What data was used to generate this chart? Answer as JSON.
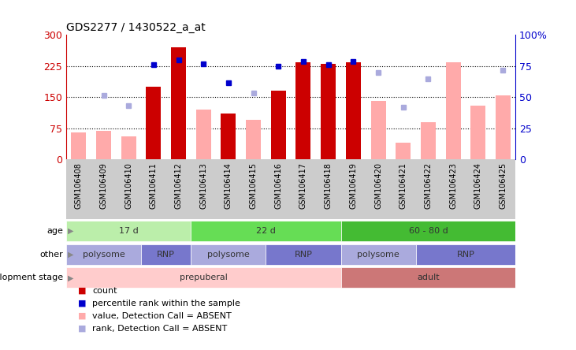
{
  "title": "GDS2277 / 1430522_a_at",
  "samples": [
    "GSM106408",
    "GSM106409",
    "GSM106410",
    "GSM106411",
    "GSM106412",
    "GSM106413",
    "GSM106414",
    "GSM106415",
    "GSM106416",
    "GSM106417",
    "GSM106418",
    "GSM106419",
    "GSM106420",
    "GSM106421",
    "GSM106422",
    "GSM106423",
    "GSM106424",
    "GSM106425"
  ],
  "count_values": [
    null,
    null,
    null,
    175,
    270,
    null,
    110,
    null,
    165,
    235,
    230,
    235,
    null,
    null,
    null,
    null,
    null,
    null
  ],
  "count_absent_values": [
    65,
    68,
    55,
    null,
    null,
    120,
    null,
    95,
    null,
    null,
    null,
    null,
    140,
    40,
    90,
    235,
    130,
    155
  ],
  "rank_values": [
    null,
    null,
    null,
    228,
    240,
    230,
    185,
    null,
    225,
    237,
    228,
    237,
    null,
    null,
    null,
    null,
    null,
    null
  ],
  "rank_absent_values": [
    null,
    155,
    130,
    null,
    null,
    null,
    null,
    160,
    null,
    null,
    null,
    null,
    210,
    125,
    195,
    null,
    null,
    215
  ],
  "ylim": [
    0,
    300
  ],
  "yticks_left": [
    0,
    75,
    150,
    225,
    300
  ],
  "ytick_labels_left": [
    "0",
    "75",
    "150",
    "225",
    "300"
  ],
  "ytick_labels_right": [
    "0",
    "25",
    "50",
    "75",
    "100%"
  ],
  "color_count": "#cc0000",
  "color_count_absent": "#ffaaaa",
  "color_rank": "#0000cc",
  "color_rank_absent": "#aaaadd",
  "age_groups": [
    {
      "label": "17 d",
      "start": 0,
      "end": 5,
      "color": "#bbeeaa"
    },
    {
      "label": "22 d",
      "start": 5,
      "end": 11,
      "color": "#66dd55"
    },
    {
      "label": "60 - 80 d",
      "start": 11,
      "end": 18,
      "color": "#44bb33"
    }
  ],
  "other_groups": [
    {
      "label": "polysome",
      "start": 0,
      "end": 3,
      "color": "#aaaadd"
    },
    {
      "label": "RNP",
      "start": 3,
      "end": 5,
      "color": "#7777cc"
    },
    {
      "label": "polysome",
      "start": 5,
      "end": 8,
      "color": "#aaaadd"
    },
    {
      "label": "RNP",
      "start": 8,
      "end": 11,
      "color": "#7777cc"
    },
    {
      "label": "polysome",
      "start": 11,
      "end": 14,
      "color": "#aaaadd"
    },
    {
      "label": "RNP",
      "start": 14,
      "end": 18,
      "color": "#7777cc"
    }
  ],
  "dev_groups": [
    {
      "label": "prepuberal",
      "start": 0,
      "end": 11,
      "color": "#ffcccc"
    },
    {
      "label": "adult",
      "start": 11,
      "end": 18,
      "color": "#cc7777"
    }
  ],
  "legend_items": [
    {
      "label": "count",
      "color": "#cc0000"
    },
    {
      "label": "percentile rank within the sample",
      "color": "#0000cc"
    },
    {
      "label": "value, Detection Call = ABSENT",
      "color": "#ffaaaa"
    },
    {
      "label": "rank, Detection Call = ABSENT",
      "color": "#aaaadd"
    }
  ],
  "row_labels": [
    "age",
    "other",
    "development stage"
  ],
  "xtick_bg_color": "#cccccc",
  "bg_color": "#ffffff"
}
